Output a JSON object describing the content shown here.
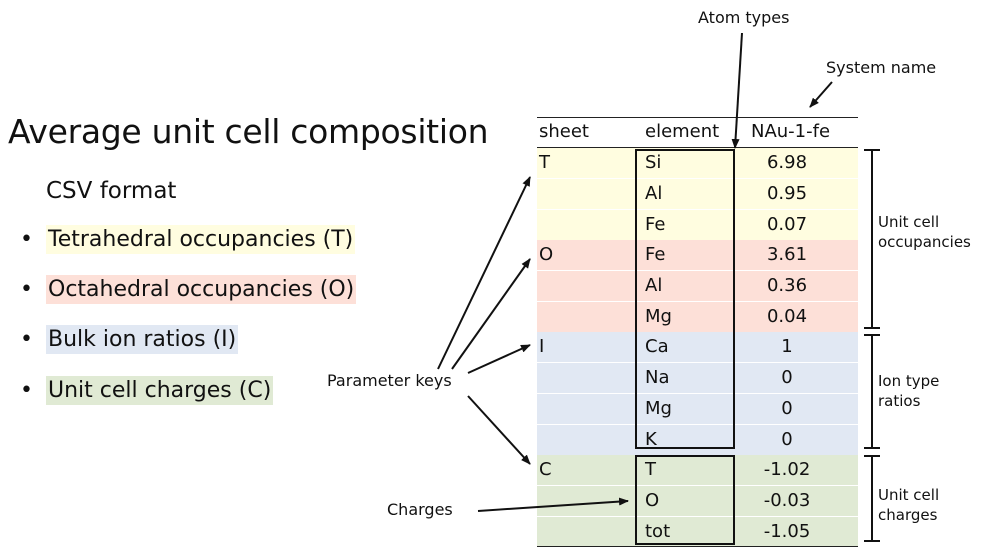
{
  "title": "Average unit cell composition",
  "subtitle": "CSV format",
  "bullets": [
    {
      "key": "T",
      "text": "Tetrahedral occupancies (T)",
      "color": "#fffde0"
    },
    {
      "key": "O",
      "text": "Octahedral occupancies (O)",
      "color": "#fde0d8"
    },
    {
      "key": "I",
      "text": "Bulk ion ratios (I)",
      "color": "#e1e8f3"
    },
    {
      "key": "C",
      "text": "Unit cell charges (C)",
      "color": "#e0ead4"
    }
  ],
  "table": {
    "headers": {
      "sheet": "sheet",
      "element": "element",
      "system": "NAu-1-fe"
    },
    "groups": [
      {
        "sheet": "T",
        "color": "#fffde0",
        "rows": [
          {
            "element": "Si",
            "value": "6.98"
          },
          {
            "element": "Al",
            "value": "0.95"
          },
          {
            "element": "Fe",
            "value": "0.07"
          }
        ]
      },
      {
        "sheet": "O",
        "color": "#fde0d8",
        "rows": [
          {
            "element": "Fe",
            "value": "3.61"
          },
          {
            "element": "Al",
            "value": "0.36"
          },
          {
            "element": "Mg",
            "value": "0.04"
          }
        ]
      },
      {
        "sheet": "I",
        "color": "#e1e8f3",
        "rows": [
          {
            "element": "Ca",
            "value": "1"
          },
          {
            "element": "Na",
            "value": "0"
          },
          {
            "element": "Mg",
            "value": "0"
          },
          {
            "element": "K",
            "value": "0"
          }
        ]
      },
      {
        "sheet": "C",
        "color": "#e0ead4",
        "rows": [
          {
            "element": "T",
            "value": "-1.02"
          },
          {
            "element": "O",
            "value": "-0.03"
          },
          {
            "element": "tot",
            "value": "-1.05"
          }
        ]
      }
    ]
  },
  "annotations": {
    "atom_types": "Atom types",
    "system_name": "System name",
    "parameter_keys": "Parameter keys",
    "charges": "Charges",
    "unit_cell_occupancies": "Unit cell occupancies",
    "ion_type_ratios": "Ion type ratios",
    "unit_cell_charges": "Unit cell charges"
  }
}
